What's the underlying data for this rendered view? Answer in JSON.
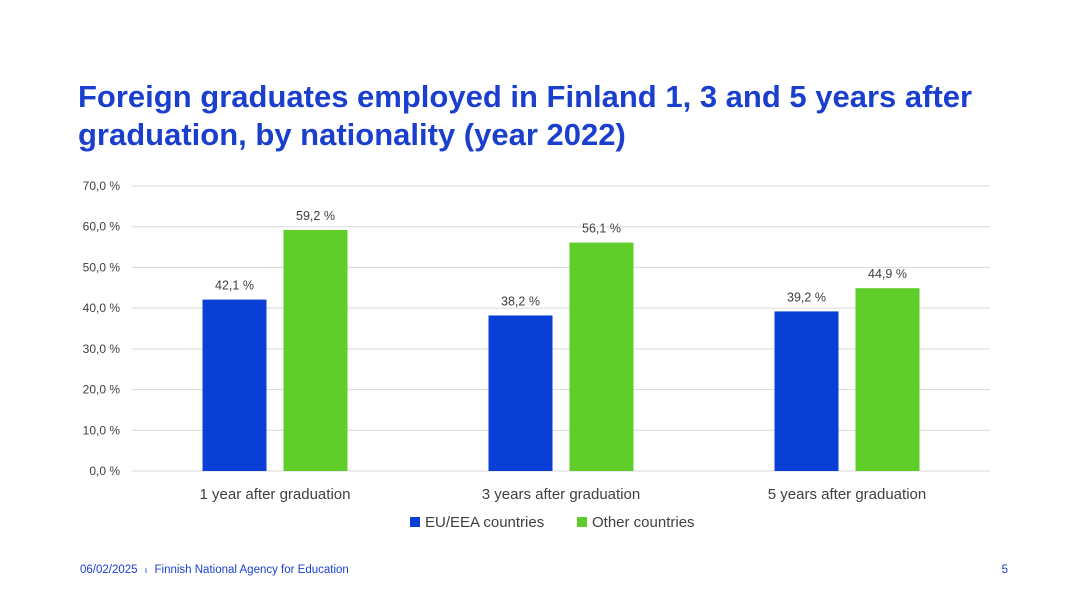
{
  "slide": {
    "title": "Foreign graduates employed in Finland 1, 3 and 5 years after graduation, by nationality (year 2022)",
    "footer_date": "06/02/2025",
    "footer_separator": "ı",
    "footer_org": "Finnish National Agency for Education",
    "page_number": "5"
  },
  "chart_data": {
    "type": "bar",
    "categories": [
      "1 year after graduation",
      "3 years after graduation",
      "5 years after graduation"
    ],
    "series": [
      {
        "name": "EU/EEA countries",
        "color": "#0a3fd6",
        "values": [
          42.1,
          38.2,
          39.2
        ],
        "labels": [
          "42,1 %",
          "38,2 %",
          "39,2 %"
        ]
      },
      {
        "name": "Other countries",
        "color": "#5fcd2a",
        "values": [
          59.2,
          56.1,
          44.9
        ],
        "labels": [
          "59,2 %",
          "56,1 %",
          "44,9 %"
        ]
      }
    ],
    "ylim": [
      0,
      70
    ],
    "yticks": [
      0,
      10,
      20,
      30,
      40,
      50,
      60,
      70
    ],
    "ytick_labels": [
      "0,0 %",
      "10,0 %",
      "20,0 %",
      "30,0 %",
      "40,0 %",
      "50,0 %",
      "60,0 %",
      "70,0 %"
    ],
    "grid": true,
    "gridline_color": "#d9d9d9",
    "legend_position": "bottom"
  }
}
